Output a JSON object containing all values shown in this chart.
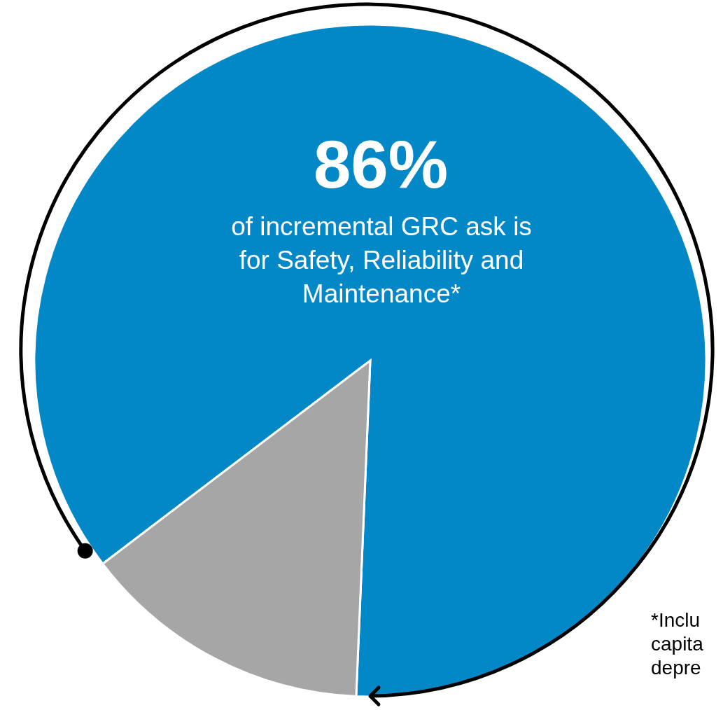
{
  "chart_data": {
    "type": "pie",
    "title": "86%",
    "subtitle": "of incremental GRC ask is for Safety, Reliability and Maintenance*",
    "categories": [
      null,
      null
    ],
    "values": [
      86,
      14
    ],
    "colors": [
      "#0288c7",
      "#a6a6a6"
    ],
    "annotations": [
      "*Inclu",
      "capita",
      "depre"
    ]
  }
}
